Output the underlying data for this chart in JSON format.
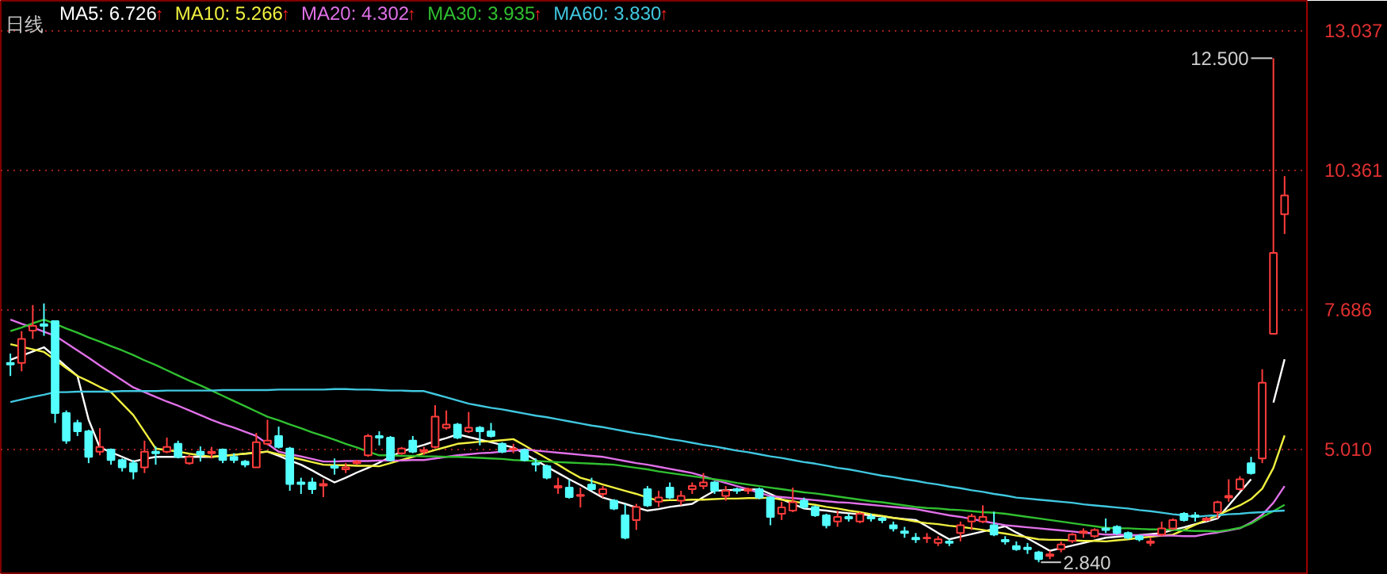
{
  "chart_data": {
    "type": "candlestick",
    "title": "日线",
    "categories": [
      null,
      null,
      null,
      null,
      null,
      null,
      null,
      null,
      null,
      null,
      null,
      null,
      null,
      null,
      null,
      null,
      null,
      null,
      null,
      null,
      null,
      null,
      null,
      null,
      null,
      null,
      null,
      null,
      null,
      null,
      null,
      null,
      null,
      null,
      null,
      null,
      null,
      null,
      null,
      null,
      null,
      null,
      null,
      null,
      null,
      null,
      null,
      null,
      null,
      null,
      null,
      null,
      null,
      null,
      null,
      null,
      null,
      null,
      null,
      null,
      null,
      null,
      null,
      null,
      null,
      null,
      null,
      null,
      null,
      null,
      null,
      null,
      null,
      null,
      null,
      null,
      null,
      null,
      null,
      null,
      null,
      null,
      null,
      null,
      null,
      null,
      null,
      null,
      null,
      null,
      null,
      null,
      null,
      null,
      null,
      null,
      null,
      null,
      null,
      null,
      null,
      null,
      null,
      null,
      null,
      null,
      null,
      null,
      null,
      null,
      null,
      null,
      null,
      null,
      null
    ],
    "ohlc": [
      [
        6.66,
        6.84,
        6.41,
        6.63
      ],
      [
        6.66,
        7.27,
        6.5,
        7.12
      ],
      [
        7.28,
        7.77,
        7.12,
        7.37
      ],
      [
        7.4,
        7.8,
        7.18,
        7.37
      ],
      [
        7.46,
        7.46,
        5.51,
        5.7
      ],
      [
        5.7,
        5.75,
        5.11,
        5.17
      ],
      [
        5.51,
        5.57,
        5.26,
        5.35
      ],
      [
        5.35,
        5.38,
        4.74,
        4.86
      ],
      [
        4.96,
        5.41,
        4.89,
        5.05
      ],
      [
        5.0,
        5.02,
        4.71,
        4.8
      ],
      [
        4.8,
        4.83,
        4.58,
        4.66
      ],
      [
        4.74,
        4.8,
        4.43,
        4.58
      ],
      [
        4.66,
        5.17,
        4.55,
        4.96
      ],
      [
        4.96,
        5.06,
        4.71,
        4.93
      ],
      [
        4.96,
        5.23,
        4.93,
        5.05
      ],
      [
        5.11,
        5.17,
        4.83,
        4.86
      ],
      [
        4.74,
        4.9,
        4.71,
        4.86
      ],
      [
        4.96,
        5.06,
        4.77,
        4.9
      ],
      [
        4.93,
        5.05,
        4.83,
        4.96
      ],
      [
        5.0,
        5.02,
        4.74,
        4.8
      ],
      [
        4.86,
        4.93,
        4.74,
        4.8
      ],
      [
        4.77,
        4.8,
        4.66,
        4.71
      ],
      [
        4.66,
        5.32,
        4.66,
        5.14
      ],
      [
        5.11,
        5.57,
        5.08,
        5.17
      ],
      [
        5.26,
        5.44,
        5.02,
        5.05
      ],
      [
        5.02,
        5.05,
        4.21,
        4.34
      ],
      [
        4.37,
        4.46,
        4.15,
        4.34
      ],
      [
        4.37,
        4.46,
        4.15,
        4.24
      ],
      [
        4.31,
        4.43,
        4.09,
        4.34
      ],
      [
        4.68,
        4.83,
        4.52,
        4.65
      ],
      [
        4.62,
        4.74,
        4.55,
        4.66
      ],
      [
        4.74,
        4.8,
        4.71,
        4.77
      ],
      [
        4.89,
        5.3,
        4.86,
        5.26
      ],
      [
        5.26,
        5.35,
        5.08,
        5.23
      ],
      [
        5.23,
        5.26,
        4.77,
        4.8
      ],
      [
        4.93,
        5.05,
        4.9,
        5.02
      ],
      [
        5.17,
        5.26,
        4.93,
        4.96
      ],
      [
        4.96,
        5.05,
        4.9,
        4.99
      ],
      [
        5.05,
        5.85,
        5.02,
        5.63
      ],
      [
        5.42,
        5.75,
        5.38,
        5.48
      ],
      [
        5.48,
        5.51,
        5.2,
        5.23
      ],
      [
        5.35,
        5.72,
        5.32,
        5.42
      ],
      [
        5.42,
        5.45,
        5.08,
        5.35
      ],
      [
        5.35,
        5.51,
        5.23,
        5.26
      ],
      [
        5.11,
        5.14,
        4.93,
        4.96
      ],
      [
        5.0,
        5.11,
        4.93,
        5.02
      ],
      [
        4.99,
        5.02,
        4.77,
        4.8
      ],
      [
        4.74,
        4.83,
        4.58,
        4.71
      ],
      [
        4.68,
        4.71,
        4.43,
        4.46
      ],
      [
        4.27,
        4.46,
        4.15,
        4.3
      ],
      [
        4.27,
        4.43,
        4.06,
        4.09
      ],
      [
        4.11,
        4.27,
        3.89,
        4.13
      ],
      [
        4.33,
        4.46,
        4.21,
        4.24
      ],
      [
        4.15,
        4.3,
        4.08,
        4.24
      ],
      [
        4.02,
        4.05,
        3.84,
        3.87
      ],
      [
        3.74,
        3.96,
        3.28,
        3.31
      ],
      [
        3.65,
        3.96,
        3.46,
        3.9
      ],
      [
        4.24,
        4.3,
        3.9,
        3.93
      ],
      [
        4.0,
        4.21,
        3.9,
        4.08
      ],
      [
        4.27,
        4.37,
        4.05,
        4.08
      ],
      [
        4.02,
        4.21,
        3.93,
        4.11
      ],
      [
        4.24,
        4.37,
        4.15,
        4.3
      ],
      [
        4.3,
        4.55,
        4.24,
        4.37
      ],
      [
        4.37,
        4.4,
        4.15,
        4.21
      ],
      [
        4.11,
        4.3,
        4.02,
        4.21
      ],
      [
        4.24,
        4.27,
        4.15,
        4.21
      ],
      [
        4.21,
        4.27,
        4.15,
        4.24
      ],
      [
        4.24,
        4.27,
        4.05,
        4.08
      ],
      [
        4.08,
        4.11,
        3.55,
        3.71
      ],
      [
        3.77,
        4.0,
        3.65,
        3.89
      ],
      [
        3.83,
        4.27,
        3.8,
        3.99
      ],
      [
        4.02,
        4.08,
        3.87,
        3.9
      ],
      [
        3.9,
        3.93,
        3.71,
        3.74
      ],
      [
        3.74,
        3.77,
        3.49,
        3.55
      ],
      [
        3.62,
        3.83,
        3.52,
        3.71
      ],
      [
        3.71,
        3.77,
        3.62,
        3.68
      ],
      [
        3.62,
        3.8,
        3.59,
        3.77
      ],
      [
        3.71,
        3.77,
        3.62,
        3.68
      ],
      [
        3.68,
        3.71,
        3.59,
        3.65
      ],
      [
        3.55,
        3.62,
        3.43,
        3.49
      ],
      [
        3.43,
        3.52,
        3.31,
        3.4
      ],
      [
        3.31,
        3.4,
        3.21,
        3.28
      ],
      [
        3.3,
        3.4,
        3.21,
        3.31
      ],
      [
        3.21,
        3.34,
        3.15,
        3.28
      ],
      [
        3.24,
        3.28,
        3.15,
        3.21
      ],
      [
        3.4,
        3.62,
        3.24,
        3.55
      ],
      [
        3.62,
        3.77,
        3.46,
        3.72
      ],
      [
        3.62,
        3.93,
        3.59,
        3.71
      ],
      [
        3.55,
        3.81,
        3.34,
        3.37
      ],
      [
        3.27,
        3.34,
        3.18,
        3.24
      ],
      [
        3.15,
        3.24,
        3.06,
        3.09
      ],
      [
        3.12,
        3.21,
        3.0,
        3.09
      ],
      [
        3.03,
        3.06,
        2.84,
        2.9
      ],
      [
        2.96,
        3.06,
        2.9,
        2.99
      ],
      [
        3.09,
        3.24,
        3.03,
        3.18
      ],
      [
        3.25,
        3.4,
        3.21,
        3.37
      ],
      [
        3.4,
        3.49,
        3.31,
        3.43
      ],
      [
        3.34,
        3.49,
        3.31,
        3.46
      ],
      [
        3.49,
        3.68,
        3.4,
        3.46
      ],
      [
        3.52,
        3.55,
        3.37,
        3.4
      ],
      [
        3.4,
        3.43,
        3.28,
        3.31
      ],
      [
        3.34,
        3.37,
        3.24,
        3.28
      ],
      [
        3.21,
        3.31,
        3.15,
        3.24
      ],
      [
        3.37,
        3.62,
        3.34,
        3.49
      ],
      [
        3.49,
        3.68,
        3.46,
        3.65
      ],
      [
        3.77,
        3.8,
        3.62,
        3.65
      ],
      [
        3.74,
        3.8,
        3.62,
        3.71
      ],
      [
        3.65,
        3.71,
        3.62,
        3.68
      ],
      [
        3.8,
        4.02,
        3.68,
        3.99
      ],
      [
        4.08,
        4.43,
        4.0,
        4.11
      ],
      [
        4.24,
        4.49,
        4.21,
        4.43
      ],
      [
        4.74,
        4.86,
        4.52,
        4.55
      ],
      [
        4.83,
        6.54,
        4.74,
        6.28
      ],
      [
        7.22,
        12.5,
        7.22,
        8.77
      ],
      [
        9.51,
        10.24,
        9.13,
        9.87
      ]
    ],
    "series": [
      {
        "name": "MA5: 6.726↑",
        "type": "line",
        "color": "#ffffff",
        "values": [
          6.72,
          6.8,
          6.88,
          6.96,
          6.78,
          6.59,
          6.41,
          5.57,
          5.04,
          4.95,
          4.86,
          4.77,
          4.82,
          4.86,
          4.86,
          4.86,
          4.86,
          4.86,
          4.86,
          4.88,
          4.9,
          4.92,
          4.94,
          4.96,
          4.88,
          4.79,
          4.71,
          4.6,
          4.48,
          4.37,
          4.46,
          4.56,
          4.65,
          4.75,
          4.86,
          4.96,
          5.03,
          5.09,
          5.16,
          5.22,
          5.29,
          5.24,
          5.19,
          5.14,
          5.09,
          5.04,
          4.92,
          4.8,
          4.67,
          4.55,
          4.43,
          4.32,
          4.2,
          4.08,
          4.02,
          3.96,
          3.89,
          3.83,
          3.86,
          3.9,
          3.93,
          3.96,
          4.09,
          4.21,
          4.22,
          4.23,
          4.23,
          4.24,
          4.15,
          4.05,
          3.96,
          3.87,
          3.85,
          3.83,
          3.8,
          3.78,
          3.76,
          3.74,
          3.72,
          3.69,
          3.67,
          3.65,
          3.53,
          3.4,
          3.28,
          3.33,
          3.38,
          3.43,
          3.48,
          3.53,
          3.41,
          3.3,
          3.18,
          3.06,
          3.11,
          3.16,
          3.21,
          3.26,
          3.31,
          3.33,
          3.35,
          3.36,
          3.38,
          3.4,
          3.46,
          3.51,
          3.57,
          3.62,
          3.68,
          3.93,
          4.18,
          4.43,
          null,
          5.9,
          6.73
        ]
      },
      {
        "name": "MA10: 5.266↑",
        "type": "line",
        "color": "#f0f040",
        "values": [
          7.02,
          6.97,
          6.92,
          6.87,
          6.72,
          6.56,
          6.41,
          6.31,
          6.2,
          6.1,
          5.88,
          5.66,
          5.34,
          5.02,
          4.99,
          4.96,
          4.92,
          4.89,
          4.86,
          4.88,
          4.9,
          4.92,
          4.94,
          4.96,
          4.91,
          4.86,
          4.81,
          4.76,
          4.71,
          4.7,
          4.7,
          4.69,
          4.69,
          4.68,
          4.74,
          4.8,
          4.86,
          4.93,
          4.99,
          5.05,
          5.11,
          5.13,
          5.15,
          5.16,
          5.18,
          5.2,
          5.08,
          4.95,
          4.83,
          4.71,
          4.58,
          4.46,
          4.4,
          4.33,
          4.27,
          4.21,
          4.15,
          4.08,
          4.02,
          4.03,
          4.03,
          4.04,
          4.04,
          4.05,
          4.06,
          4.06,
          4.07,
          4.07,
          4.08,
          4.04,
          4.01,
          3.97,
          3.94,
          3.9,
          3.87,
          3.83,
          3.8,
          3.76,
          3.73,
          3.69,
          3.66,
          3.62,
          3.59,
          3.57,
          3.54,
          3.52,
          3.49,
          3.46,
          3.42,
          3.39,
          3.35,
          3.32,
          3.28,
          3.27,
          3.27,
          3.26,
          3.25,
          3.25,
          3.24,
          3.26,
          3.28,
          3.31,
          3.33,
          3.35,
          3.37,
          3.46,
          3.56,
          3.65,
          3.74,
          3.84,
          3.93,
          4.05,
          4.25,
          4.65,
          5.27
        ]
      },
      {
        "name": "MA20: 4.302↑",
        "type": "line",
        "color": "#e070e8",
        "values": [
          7.49,
          7.41,
          7.34,
          7.26,
          7.18,
          7.04,
          6.9,
          6.76,
          6.61,
          6.47,
          6.33,
          6.19,
          6.1,
          6.01,
          5.92,
          5.84,
          5.75,
          5.66,
          5.57,
          5.49,
          5.42,
          5.34,
          5.26,
          5.11,
          4.96,
          4.91,
          4.87,
          4.82,
          4.77,
          4.77,
          4.78,
          4.78,
          4.78,
          4.79,
          4.79,
          4.79,
          4.8,
          4.8,
          4.83,
          4.86,
          4.89,
          4.91,
          4.93,
          4.94,
          4.96,
          4.98,
          5.0,
          4.98,
          4.96,
          4.94,
          4.92,
          4.9,
          4.88,
          4.86,
          4.82,
          4.78,
          4.74,
          4.71,
          4.67,
          4.63,
          4.59,
          4.55,
          4.49,
          4.42,
          4.36,
          4.3,
          4.24,
          4.17,
          4.11,
          4.09,
          4.07,
          4.05,
          4.03,
          4.01,
          3.99,
          3.98,
          3.96,
          3.94,
          3.92,
          3.9,
          3.88,
          3.86,
          3.82,
          3.78,
          3.74,
          3.71,
          3.67,
          3.63,
          3.59,
          3.55,
          3.53,
          3.51,
          3.49,
          3.47,
          3.45,
          3.43,
          3.41,
          3.39,
          3.37,
          3.37,
          3.36,
          3.36,
          3.36,
          3.35,
          3.35,
          3.34,
          3.34,
          3.38,
          3.41,
          3.45,
          3.49,
          3.6,
          3.75,
          3.98,
          4.3
        ]
      },
      {
        "name": "MA30: 3.935↑",
        "type": "line",
        "color": "#30c030",
        "values": [
          7.27,
          7.34,
          7.42,
          7.49,
          7.41,
          7.32,
          7.24,
          7.15,
          7.07,
          6.98,
          6.9,
          6.81,
          6.71,
          6.62,
          6.52,
          6.42,
          6.32,
          6.23,
          6.13,
          6.03,
          5.93,
          5.83,
          5.73,
          5.63,
          5.56,
          5.48,
          5.41,
          5.33,
          5.26,
          5.19,
          5.11,
          5.04,
          4.96,
          4.89,
          4.89,
          4.88,
          4.88,
          4.87,
          4.87,
          4.86,
          4.86,
          4.85,
          4.84,
          4.83,
          4.82,
          4.8,
          4.79,
          4.78,
          4.77,
          4.76,
          4.75,
          4.74,
          4.73,
          4.72,
          4.71,
          4.68,
          4.65,
          4.62,
          4.58,
          4.55,
          4.52,
          4.49,
          4.46,
          4.43,
          4.4,
          4.36,
          4.33,
          4.3,
          4.27,
          4.24,
          4.21,
          4.18,
          4.16,
          4.13,
          4.1,
          4.07,
          4.04,
          4.01,
          3.99,
          3.96,
          3.93,
          3.9,
          3.88,
          3.87,
          3.85,
          3.84,
          3.82,
          3.8,
          3.79,
          3.77,
          3.74,
          3.71,
          3.68,
          3.65,
          3.62,
          3.59,
          3.56,
          3.53,
          3.5,
          3.49,
          3.49,
          3.48,
          3.47,
          3.47,
          3.46,
          3.45,
          3.44,
          3.44,
          3.43,
          3.46,
          3.5,
          3.58,
          3.71,
          3.82,
          3.94
        ]
      },
      {
        "name": "MA60: 3.830↑",
        "type": "line",
        "color": "#40c8e0",
        "values": [
          5.91,
          5.96,
          6.01,
          6.05,
          6.1,
          6.1,
          6.11,
          6.11,
          6.11,
          6.11,
          6.12,
          6.12,
          6.12,
          6.12,
          6.13,
          6.13,
          6.13,
          6.13,
          6.13,
          6.14,
          6.14,
          6.14,
          6.14,
          6.14,
          6.15,
          6.15,
          6.15,
          6.15,
          6.15,
          6.16,
          6.16,
          6.15,
          6.15,
          6.14,
          6.13,
          6.13,
          6.12,
          6.12,
          6.06,
          6.0,
          5.94,
          5.88,
          5.84,
          5.8,
          5.77,
          5.73,
          5.69,
          5.65,
          5.62,
          5.58,
          5.54,
          5.5,
          5.46,
          5.43,
          5.39,
          5.35,
          5.31,
          5.28,
          5.24,
          5.2,
          5.17,
          5.13,
          5.09,
          5.06,
          5.02,
          4.98,
          4.95,
          4.91,
          4.87,
          4.84,
          4.8,
          4.76,
          4.73,
          4.69,
          4.65,
          4.62,
          4.58,
          4.54,
          4.5,
          4.47,
          4.43,
          4.4,
          4.36,
          4.33,
          4.29,
          4.26,
          4.22,
          4.19,
          4.15,
          4.12,
          4.08,
          4.06,
          4.04,
          4.02,
          4.0,
          3.98,
          3.95,
          3.93,
          3.91,
          3.89,
          3.87,
          3.84,
          3.82,
          3.79,
          3.76,
          3.74,
          3.71,
          3.73,
          3.74,
          3.76,
          3.77,
          3.79,
          3.8,
          3.82,
          3.83
        ]
      }
    ],
    "ylim": [
      2.6,
      13.6
    ],
    "yticks": [
      {
        "value": 5.01,
        "label": "5.010"
      },
      {
        "value": 7.686,
        "label": "7.686"
      },
      {
        "value": 10.361,
        "label": "10.361"
      },
      {
        "value": 13.037,
        "label": "13.037"
      }
    ],
    "annotations": [
      "12.500",
      "2.840"
    ],
    "grid": "y",
    "legend": "top left",
    "tick_labels": "y"
  }
}
